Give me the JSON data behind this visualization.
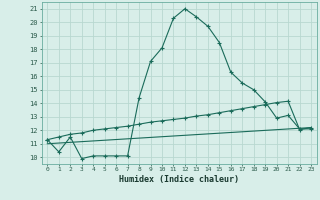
{
  "title": "",
  "xlabel": "Humidex (Indice chaleur)",
  "ylabel": "",
  "bg_color": "#d8eee9",
  "grid_color": "#b8d8d0",
  "line_color": "#1a6b5a",
  "xlim": [
    -0.5,
    23.5
  ],
  "ylim": [
    9.5,
    21.5
  ],
  "yticks": [
    10,
    11,
    12,
    13,
    14,
    15,
    16,
    17,
    18,
    19,
    20,
    21
  ],
  "xticks": [
    0,
    1,
    2,
    3,
    4,
    5,
    6,
    7,
    8,
    9,
    10,
    11,
    12,
    13,
    14,
    15,
    16,
    17,
    18,
    19,
    20,
    21,
    22,
    23
  ],
  "xtick_labels": [
    "0",
    "1",
    "2",
    "3",
    "4",
    "5",
    "6",
    "7",
    "8",
    "9",
    "10",
    "11",
    "12",
    "13",
    "14",
    "15",
    "16",
    "17",
    "18",
    "19",
    "20",
    "21",
    "22",
    "23"
  ],
  "series1_x": [
    0,
    1,
    2,
    3,
    4,
    5,
    6,
    7,
    8,
    9,
    10,
    11,
    12,
    13,
    14,
    15,
    16,
    17,
    18,
    19,
    20,
    21,
    22,
    23
  ],
  "series1_y": [
    11.3,
    10.4,
    11.5,
    9.9,
    10.1,
    10.1,
    10.1,
    10.1,
    14.4,
    17.1,
    18.1,
    20.3,
    21.0,
    20.4,
    19.7,
    18.5,
    16.3,
    15.5,
    15.0,
    14.1,
    12.9,
    13.1,
    12.1,
    12.1
  ],
  "series2_x": [
    0,
    1,
    2,
    3,
    4,
    5,
    6,
    7,
    8,
    9,
    10,
    11,
    12,
    13,
    14,
    15,
    16,
    17,
    18,
    19,
    20,
    21,
    22,
    23
  ],
  "series2_y": [
    11.3,
    11.5,
    11.7,
    11.8,
    12.0,
    12.1,
    12.2,
    12.3,
    12.45,
    12.6,
    12.7,
    12.8,
    12.9,
    13.05,
    13.15,
    13.3,
    13.45,
    13.6,
    13.75,
    13.9,
    14.05,
    14.15,
    12.05,
    12.2
  ],
  "series3_x": [
    0,
    23
  ],
  "series3_y": [
    11.0,
    12.2
  ]
}
